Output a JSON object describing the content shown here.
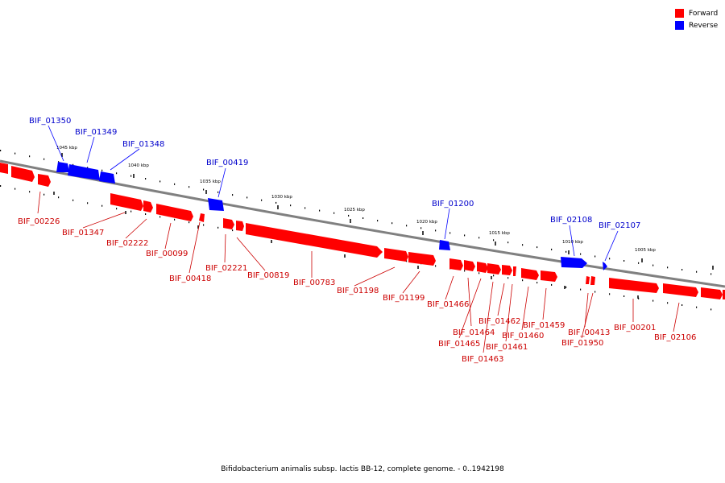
{
  "genome_title": "Bifidobacterium animalis subsp. lactis BB-12, complete genome. - 0..1942198",
  "legend": [
    {
      "label": "Forward",
      "color": "#ff0000"
    },
    {
      "label": "Reverse",
      "color": "#0000ff"
    }
  ],
  "colors": {
    "forward": "#ff0000",
    "reverse": "#0000ff",
    "backbone": "#808080"
  },
  "kbp_ticks": [
    "1045 kbp",
    "1040 kbp",
    "1035 kbp",
    "1030 kbp",
    "1025 kbp",
    "1020 kbp",
    "1015 kbp",
    "1010 kbp",
    "1005 kbp"
  ],
  "forward_genes": [
    "BIF_00226",
    "BIF_01347",
    "BIF_02222",
    "BIF_00099",
    "BIF_00418",
    "BIF_02221",
    "BIF_00819",
    "BIF_00783",
    "BIF_01198",
    "BIF_01199",
    "BIF_01466",
    "BIF_01464",
    "BIF_01465",
    "BIF_01463",
    "BIF_01462",
    "BIF_01461",
    "BIF_01460",
    "BIF_01459",
    "BIF_00413",
    "BIF_01950",
    "BIF_00201",
    "BIF_02106"
  ],
  "reverse_genes": [
    "BIF_01350",
    "BIF_01349",
    "BIF_01348",
    "BIF_00419",
    "BIF_01200",
    "BIF_02108",
    "BIF_02107"
  ]
}
